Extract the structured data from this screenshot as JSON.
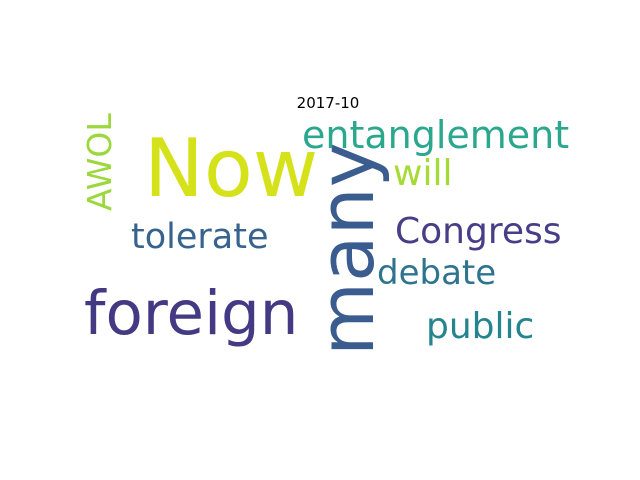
{
  "title": "2017-10",
  "words": [
    {
      "text": "Now",
      "color": "#d5e21a"
    },
    {
      "text": "many",
      "color": "#3b5c8f"
    },
    {
      "text": "foreign",
      "color": "#433a83"
    },
    {
      "text": "entanglement",
      "color": "#2ba78d"
    },
    {
      "text": "will",
      "color": "#a5db36"
    },
    {
      "text": "AWOL",
      "color": "#9cd83b"
    },
    {
      "text": "Congress",
      "color": "#483d87"
    },
    {
      "text": "tolerate",
      "color": "#37648e"
    },
    {
      "text": "debate",
      "color": "#2e748e"
    },
    {
      "text": "public",
      "color": "#25858e"
    }
  ]
}
